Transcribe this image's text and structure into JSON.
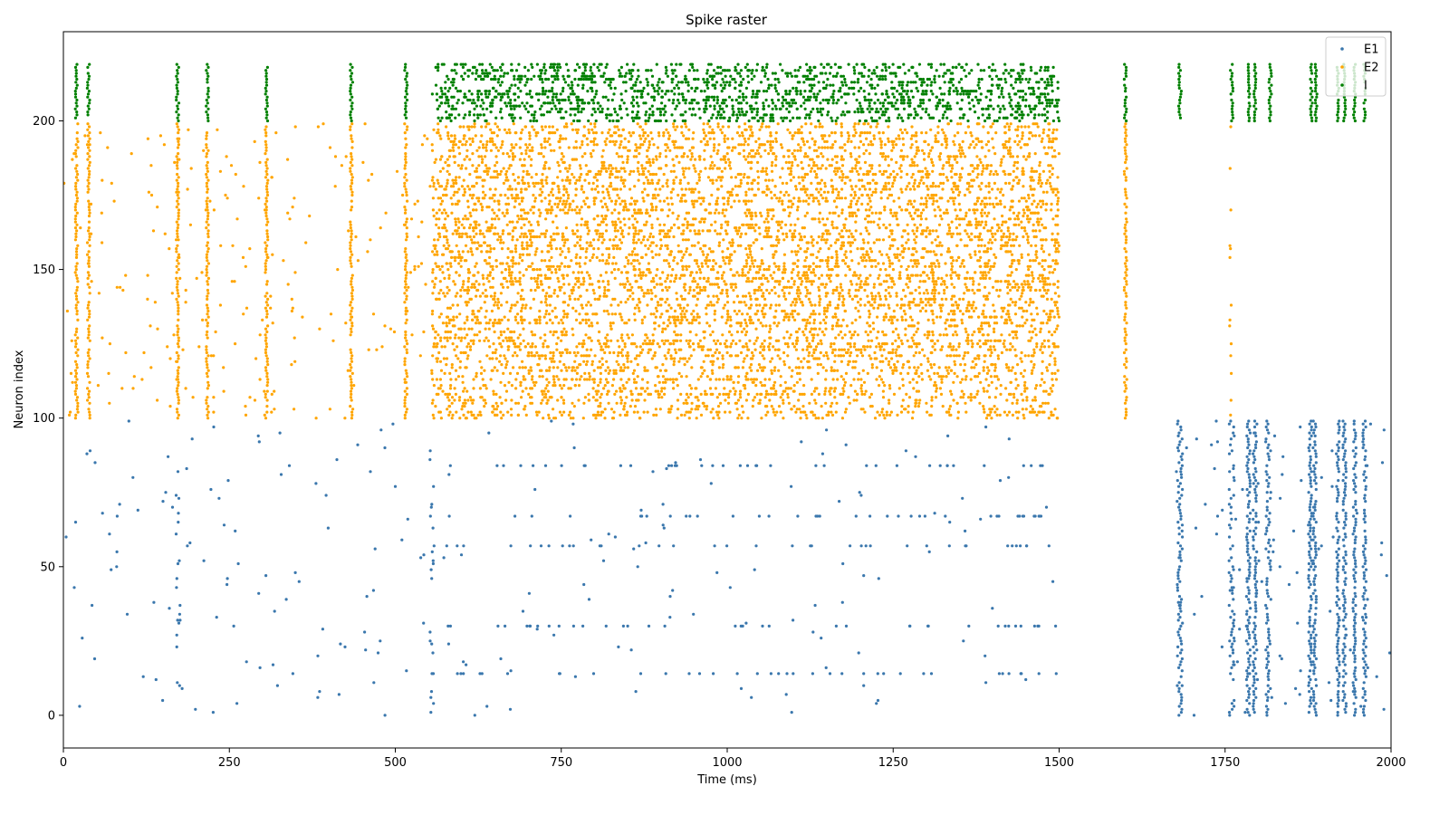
{
  "chart_data": {
    "type": "scatter",
    "title": "Spike raster",
    "xlabel": "Time (ms)",
    "ylabel": "Neuron index",
    "xlim": [
      0,
      2000
    ],
    "ylim": [
      -11,
      230
    ],
    "xticks": [
      0,
      250,
      500,
      750,
      1000,
      1250,
      1500,
      1750,
      2000
    ],
    "yticks": [
      0,
      50,
      100,
      150,
      200
    ],
    "grid": false,
    "legend_position": "top-right",
    "series": [
      {
        "name": "E1",
        "color": "#3a77ad",
        "neuron_range": [
          0,
          99
        ],
        "segments": [
          {
            "t0": 0,
            "t1": 555,
            "rate_hz": 1.5
          },
          {
            "t0": 555,
            "t1": 1500,
            "rate_hz": 1.0
          },
          {
            "t0": 1500,
            "t1": 1670,
            "rate_hz": 0.5
          },
          {
            "t0": 1670,
            "t1": 2000,
            "rate_hz": 3.0
          }
        ],
        "bursts": [
          {
            "t": 172,
            "width": 8,
            "fraction": 0.15
          },
          {
            "t": 555,
            "width": 6,
            "fraction": 0.2
          },
          {
            "t": 1682,
            "width": 8,
            "fraction": 0.9
          },
          {
            "t": 1760,
            "width": 8,
            "fraction": 0.7
          },
          {
            "t": 1785,
            "width": 6,
            "fraction": 0.85
          },
          {
            "t": 1795,
            "width": 6,
            "fraction": 0.85
          },
          {
            "t": 1815,
            "width": 8,
            "fraction": 0.85
          },
          {
            "t": 1878,
            "width": 5,
            "fraction": 0.85
          },
          {
            "t": 1885,
            "width": 5,
            "fraction": 0.85
          },
          {
            "t": 1920,
            "width": 5,
            "fraction": 0.85
          },
          {
            "t": 1930,
            "width": 5,
            "fraction": 0.85
          },
          {
            "t": 1945,
            "width": 5,
            "fraction": 0.85
          },
          {
            "t": 1960,
            "width": 5,
            "fraction": 0.85
          }
        ],
        "active_neurons_mid": [
          14,
          30,
          57,
          67,
          84
        ]
      },
      {
        "name": "E2",
        "color": "#ffa500",
        "neuron_range": [
          100,
          199
        ],
        "segments": [
          {
            "t0": 0,
            "t1": 555,
            "rate_hz": 4.0
          },
          {
            "t0": 555,
            "t1": 1500,
            "rate_hz": 75.0
          },
          {
            "t0": 1500,
            "t1": 1760,
            "rate_hz": 0.8
          },
          {
            "t0": 1760,
            "t1": 2000,
            "rate_hz": 0.3
          }
        ],
        "bursts": [
          {
            "t": 20,
            "width": 4,
            "fraction": 0.85
          },
          {
            "t": 38,
            "width": 4,
            "fraction": 0.85
          },
          {
            "t": 172,
            "width": 4,
            "fraction": 0.85
          },
          {
            "t": 217,
            "width": 4,
            "fraction": 0.85
          },
          {
            "t": 306,
            "width": 4,
            "fraction": 0.85
          },
          {
            "t": 434,
            "width": 4,
            "fraction": 0.85
          },
          {
            "t": 516,
            "width": 4,
            "fraction": 0.85
          },
          {
            "t": 1600,
            "width": 4,
            "fraction": 0.85
          },
          {
            "t": 1758,
            "width": 3,
            "fraction": 0.15
          }
        ]
      },
      {
        "name": "I",
        "color": "#008000",
        "neuron_range": [
          200,
          219
        ],
        "segments": [
          {
            "t0": 555,
            "t1": 1500,
            "rate_hz": 90.0
          }
        ],
        "bursts": [
          {
            "t": 20,
            "width": 4,
            "fraction": 0.95
          },
          {
            "t": 38,
            "width": 4,
            "fraction": 0.95
          },
          {
            "t": 172,
            "width": 4,
            "fraction": 0.95
          },
          {
            "t": 217,
            "width": 4,
            "fraction": 0.95
          },
          {
            "t": 306,
            "width": 4,
            "fraction": 0.95
          },
          {
            "t": 434,
            "width": 4,
            "fraction": 0.95
          },
          {
            "t": 516,
            "width": 4,
            "fraction": 0.95
          },
          {
            "t": 1600,
            "width": 4,
            "fraction": 0.95
          },
          {
            "t": 1682,
            "width": 4,
            "fraction": 0.95
          },
          {
            "t": 1760,
            "width": 4,
            "fraction": 0.95
          },
          {
            "t": 1786,
            "width": 3,
            "fraction": 0.95
          },
          {
            "t": 1795,
            "width": 3,
            "fraction": 0.95
          },
          {
            "t": 1818,
            "width": 4,
            "fraction": 0.95
          },
          {
            "t": 1880,
            "width": 3,
            "fraction": 0.95
          },
          {
            "t": 1887,
            "width": 3,
            "fraction": 0.95
          },
          {
            "t": 1920,
            "width": 3,
            "fraction": 0.95
          },
          {
            "t": 1930,
            "width": 3,
            "fraction": 0.95
          },
          {
            "t": 1945,
            "width": 3,
            "fraction": 0.95
          },
          {
            "t": 1960,
            "width": 3,
            "fraction": 0.95
          }
        ]
      }
    ]
  }
}
